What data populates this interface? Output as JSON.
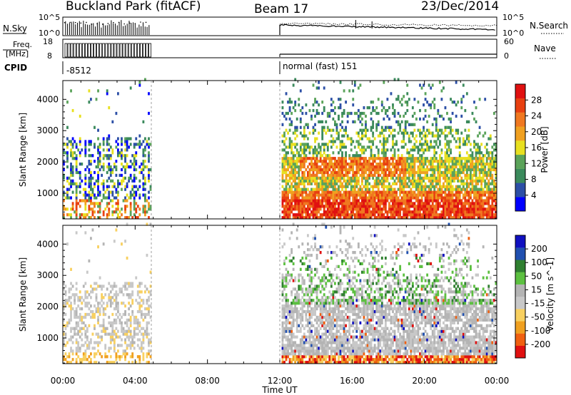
{
  "header": {
    "station": "Buckland Park (fitACF)",
    "beam": "Beam 17",
    "date": "23/Dec/2014"
  },
  "top_panels": {
    "nsky": {
      "label": "N.Sky",
      "ticks": [
        "10^5",
        "10^0"
      ]
    },
    "nsearch": {
      "label": "N.Search",
      "ticks": [
        "10^5",
        "10^0"
      ]
    },
    "freq": {
      "label_line1": "Freq.",
      "label_line2": "[MHz]",
      "ticks": [
        "18",
        "8"
      ]
    },
    "nave": {
      "label": "Nave",
      "ticks": [
        "60",
        "0"
      ]
    },
    "cpid": {
      "label": "CPID",
      "first": "-8512",
      "second": "normal (fast) 151"
    }
  },
  "colors": {
    "power_scale": [
      "#0000ff",
      "#2c4fa6",
      "#3b8a5c",
      "#5ba35a",
      "#e8e020",
      "#f0a020",
      "#f07820",
      "#e84010",
      "#e01010"
    ],
    "velocity_scale": [
      "#e01010",
      "#f06010",
      "#f0a020",
      "#f8d060",
      "#c8c8c8",
      "#b4b4b4",
      "#5cc040",
      "#2f7f30",
      "#2050b0",
      "#1010c0"
    ]
  },
  "chart_data": [
    {
      "type": "heatmap",
      "title": "Power",
      "ylabel": "Slant Range [km]",
      "xlabel": "Time UT",
      "x_ticks": [
        "00:00",
        "04:00",
        "08:00",
        "12:00",
        "16:00",
        "20:00",
        "00:00"
      ],
      "xlim_hours": [
        0,
        24
      ],
      "y_ticks": [
        1000,
        2000,
        3000,
        4000
      ],
      "ylim_km": [
        180,
        4600
      ],
      "colorbar": {
        "label": "Power [dB]",
        "ticks": [
          "4",
          "8",
          "12",
          "16",
          "20",
          "24",
          "28"
        ],
        "range": [
          0,
          32
        ]
      },
      "data_coverage_hours": [
        [
          0,
          4.8
        ],
        [
          12,
          24
        ]
      ],
      "notes": [
        "Strongest power (20-32 dB) at 500-1000 km and 1500-2000 km after 12:00 UT"
      ]
    },
    {
      "type": "heatmap",
      "title": "Velocity",
      "ylabel": "Slant Range [km]",
      "xlabel": "Time UT",
      "x_ticks": [
        "00:00",
        "04:00",
        "08:00",
        "12:00",
        "16:00",
        "20:00",
        "00:00"
      ],
      "xlim_hours": [
        0,
        24
      ],
      "y_ticks": [
        1000,
        2000,
        3000,
        4000
      ],
      "ylim_km": [
        180,
        4600
      ],
      "colorbar": {
        "label": "Velocity [m s^-1]",
        "ticks": [
          "200",
          "100",
          "50",
          "15",
          "-15",
          "-50",
          "-100",
          "-200"
        ],
        "range": [
          -250,
          250
        ]
      },
      "data_coverage_hours": [
        [
          0,
          4.8
        ],
        [
          12,
          24
        ]
      ],
      "notes": [
        "Mostly low velocity (grey, ground scatter) with green positive velocities near 2000-3500 km"
      ]
    }
  ],
  "x_axis": {
    "tick_labels": [
      "00:00",
      "04:00",
      "08:00",
      "12:00",
      "16:00",
      "20:00",
      "00:00"
    ],
    "label": "Time UT"
  }
}
